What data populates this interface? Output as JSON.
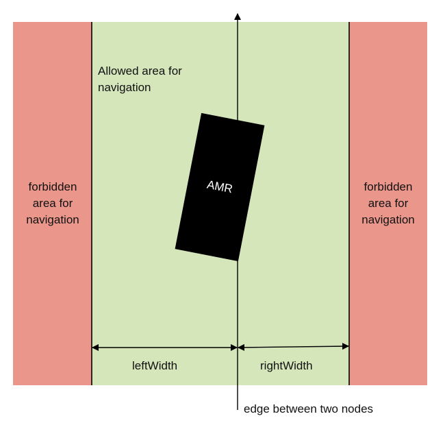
{
  "diagram": {
    "left_forbidden": {
      "label_line1": "forbidden",
      "label_line2": "area for",
      "label_line3": "navigation"
    },
    "right_forbidden": {
      "label_line1": "forbidden",
      "label_line2": "area for",
      "label_line3": "navigation"
    },
    "allowed": {
      "label_line1": "Allowed area for",
      "label_line2": "navigation"
    },
    "robot": {
      "label": "AMR"
    },
    "dimensions": {
      "left_label": "leftWidth",
      "right_label": "rightWidth"
    },
    "edge": {
      "label": "edge between two nodes"
    }
  },
  "colors": {
    "forbidden": "#ea968a",
    "allowed": "#d5e6ba",
    "robot": "#000000",
    "line": "#000000"
  }
}
